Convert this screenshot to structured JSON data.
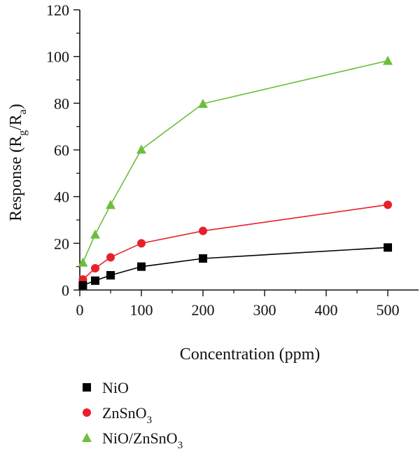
{
  "chart_data": {
    "type": "line",
    "title": "",
    "xlabel": "Concentration (ppm)",
    "ylabel": {
      "text": "Response (R",
      "sub1": "g",
      "mid": "/R",
      "sub2": "a",
      "end": ")"
    },
    "xlim": [
      0,
      550
    ],
    "ylim": [
      0,
      120
    ],
    "x_ticks": [
      0,
      100,
      200,
      300,
      400,
      500
    ],
    "y_ticks": [
      0,
      20,
      40,
      60,
      80,
      100,
      120
    ],
    "grid": false,
    "legend_position": "bottom-left",
    "x": [
      5,
      25,
      50,
      100,
      200,
      500
    ],
    "series": [
      {
        "name": "NiO",
        "name_parts": [
          "NiO"
        ],
        "marker": "square",
        "color": "#000000",
        "values": [
          2,
          4,
          6.3,
          10,
          13.5,
          18.2
        ]
      },
      {
        "name": "ZnSnO3",
        "name_parts": [
          "ZnSnO",
          "3"
        ],
        "marker": "circle",
        "color": "#e8202a",
        "values": [
          4.5,
          9.3,
          14,
          20,
          25.3,
          36.5
        ]
      },
      {
        "name": "NiO/ZnSnO3",
        "name_parts": [
          "NiO/ZnSnO",
          "3"
        ],
        "marker": "triangle",
        "color": "#6cbf3c",
        "values": [
          11.8,
          23.8,
          36.5,
          60.2,
          79.8,
          98.2
        ]
      }
    ]
  }
}
